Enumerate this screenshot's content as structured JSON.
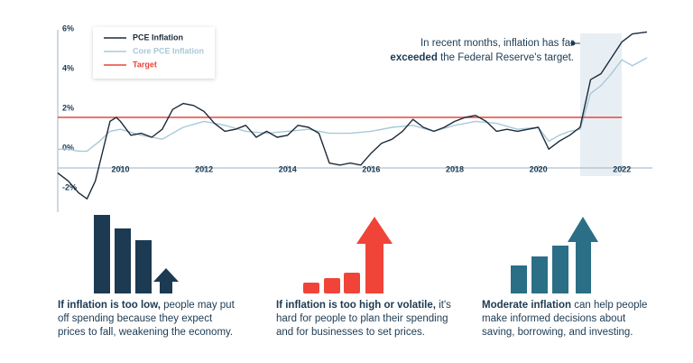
{
  "chart_data": {
    "type": "line",
    "series": [
      {
        "name": "PCE Inflation",
        "color": "#1c2b3a",
        "x": [
          2008.5,
          2008.75,
          2009.0,
          2009.2,
          2009.4,
          2009.6,
          2009.75,
          2009.9,
          2010.0,
          2010.25,
          2010.5,
          2010.75,
          2011.0,
          2011.25,
          2011.5,
          2011.75,
          2012.0,
          2012.25,
          2012.5,
          2012.75,
          2013.0,
          2013.25,
          2013.5,
          2013.75,
          2014.0,
          2014.25,
          2014.5,
          2014.75,
          2015.0,
          2015.25,
          2015.5,
          2015.75,
          2016.0,
          2016.25,
          2016.5,
          2016.75,
          2017.0,
          2017.25,
          2017.5,
          2017.75,
          2018.0,
          2018.25,
          2018.5,
          2018.75,
          2019.0,
          2019.25,
          2019.5,
          2019.75,
          2020.0,
          2020.25,
          2020.5,
          2020.75,
          2021.0,
          2021.25,
          2021.5,
          2021.75,
          2022.0,
          2022.25,
          2022.6
        ],
        "values": [
          -0.8,
          -1.2,
          -1.8,
          -2.1,
          -1.2,
          0.5,
          1.8,
          2.0,
          1.8,
          1.1,
          1.2,
          1.0,
          1.4,
          2.4,
          2.7,
          2.6,
          2.3,
          1.7,
          1.3,
          1.4,
          1.6,
          1.0,
          1.3,
          1.0,
          1.1,
          1.6,
          1.5,
          1.2,
          -0.3,
          -0.4,
          -0.3,
          -0.4,
          0.2,
          0.7,
          0.9,
          1.3,
          1.9,
          1.5,
          1.3,
          1.5,
          1.8,
          2.0,
          2.1,
          1.8,
          1.3,
          1.4,
          1.3,
          1.4,
          1.5,
          0.4,
          0.8,
          1.1,
          1.5,
          3.9,
          4.2,
          5.0,
          5.8,
          6.2,
          6.3
        ]
      },
      {
        "name": "Core PCE Inflation",
        "color": "#a9c8d8",
        "x": [
          2008.5,
          2008.75,
          2009.0,
          2009.2,
          2009.5,
          2009.75,
          2010.0,
          2010.5,
          2011.0,
          2011.5,
          2012.0,
          2012.5,
          2013.0,
          2013.5,
          2014.0,
          2014.5,
          2015.0,
          2015.5,
          2016.0,
          2016.5,
          2017.0,
          2017.5,
          2018.0,
          2018.5,
          2019.0,
          2019.5,
          2020.0,
          2020.25,
          2020.5,
          2020.75,
          2021.0,
          2021.25,
          2021.5,
          2021.75,
          2022.0,
          2022.25,
          2022.6
        ],
        "values": [
          0.4,
          0.4,
          0.3,
          0.3,
          0.8,
          1.3,
          1.4,
          1.1,
          0.9,
          1.5,
          1.8,
          1.6,
          1.3,
          1.2,
          1.3,
          1.4,
          1.2,
          1.2,
          1.3,
          1.5,
          1.6,
          1.3,
          1.6,
          1.8,
          1.7,
          1.4,
          1.5,
          0.8,
          1.1,
          1.3,
          1.4,
          3.2,
          3.6,
          4.2,
          4.9,
          4.6,
          5.0
        ]
      },
      {
        "name": "Target",
        "color": "#e8463a",
        "x": [
          2008.5,
          2022.0
        ],
        "values": [
          2,
          2
        ]
      }
    ],
    "xlim": [
      2008.5,
      2022.6
    ],
    "xticks": [
      2010,
      2012,
      2014,
      2016,
      2018,
      2020,
      2022
    ],
    "ylim": [
      -2.5,
      6.5
    ],
    "yticks": [
      {
        "value": -2,
        "label": "-2%"
      },
      {
        "value": 0,
        "label": "0%"
      },
      {
        "value": 2,
        "label": "2%"
      },
      {
        "value": 4,
        "label": "4%"
      },
      {
        "value": 6,
        "label": "6%"
      }
    ],
    "shaded_range": [
      2021.0,
      2022.0
    ],
    "annotation": {
      "line1": "In recent months, inflation has far",
      "bold": "exceeded",
      "rest": "the Federal Reserve's target."
    },
    "legend": "top-left"
  },
  "panels": [
    {
      "bold": "If inflation is too low,",
      "text": "people may put off spending because they expect prices to fall, weakening the economy."
    },
    {
      "bold": "If inflation is too high or volatile,",
      "text": "it's hard for people to plan their spending and for businesses to set prices."
    },
    {
      "bold": "Moderate inflation",
      "text": "can help people make informed decisions about saving, borrowing, and investing."
    }
  ]
}
